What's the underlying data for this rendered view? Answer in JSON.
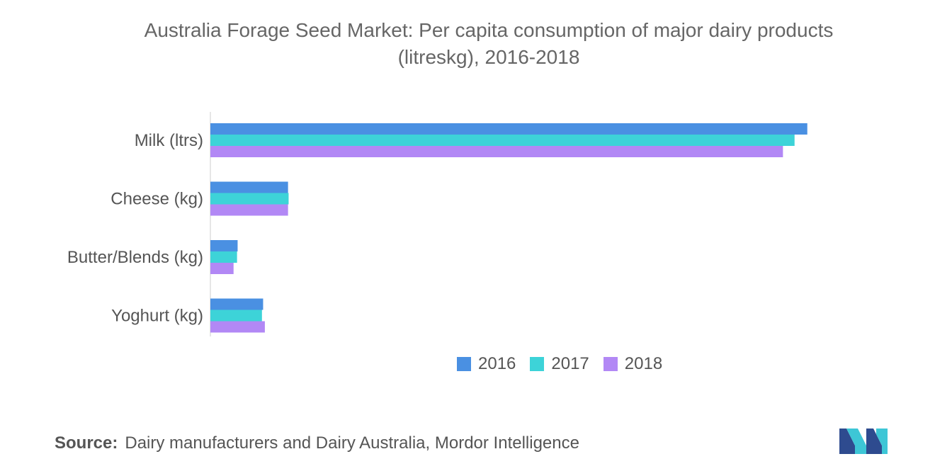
{
  "chart_data": {
    "type": "bar",
    "orientation": "horizontal",
    "title": "Australia Forage Seed Market: Per capita consumption of major dairy products",
    "subtitle": "(litreskg), 2016-2018",
    "categories": [
      "Milk (ltrs)",
      "Cheese (kg)",
      "Butter/Blends (kg)",
      "Yoghurt (kg)"
    ],
    "series": [
      {
        "name": "2016",
        "color": "#4A90E2",
        "values": [
          103.0,
          13.4,
          4.7,
          9.1
        ]
      },
      {
        "name": "2017",
        "color": "#3DD3D8",
        "values": [
          100.8,
          13.5,
          4.6,
          8.9
        ]
      },
      {
        "name": "2018",
        "color": "#B288F5",
        "values": [
          98.8,
          13.4,
          4.0,
          9.4
        ]
      }
    ],
    "xlim": [
      0,
      110
    ],
    "grid": false,
    "legend_position": "bottom"
  },
  "source": {
    "label": "Source:",
    "text": "Dairy manufacturers and Dairy Australia, Mordor Intelligence"
  },
  "logo": {
    "icon": "mordor-intelligence-logo",
    "colors": [
      "#2E4B8F",
      "#3DC6D6"
    ]
  }
}
